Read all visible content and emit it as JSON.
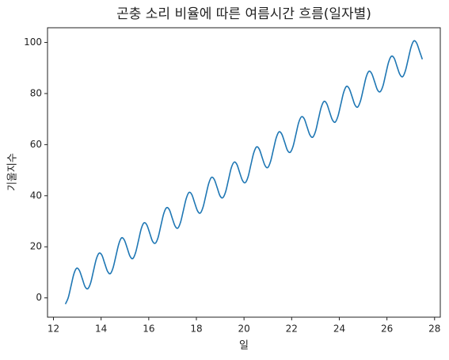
{
  "chart_data": {
    "type": "line",
    "title": "곤충 소리 비율에 따른 여름시간 흐름(일자별)",
    "xlabel": "일",
    "ylabel": "기울지수",
    "x": [
      12.5,
      12.618,
      12.736,
      12.854,
      12.972,
      13.09,
      13.208,
      13.326,
      13.444,
      13.562,
      13.68,
      13.798,
      13.916,
      14.034,
      14.152,
      14.27,
      14.388,
      14.506,
      14.624,
      14.742,
      14.86,
      14.978,
      15.096,
      15.214,
      15.332,
      15.45,
      15.568,
      15.686,
      15.804,
      15.922,
      16.04,
      16.158,
      16.276,
      16.394,
      16.512,
      16.63,
      16.748,
      16.866,
      16.984,
      17.102,
      17.22,
      17.338,
      17.456,
      17.574,
      17.692,
      17.81,
      17.928,
      18.046,
      18.164,
      18.282,
      18.4,
      18.518,
      18.636,
      18.754,
      18.872,
      18.99,
      19.108,
      19.226,
      19.344,
      19.462,
      19.58,
      19.698,
      19.816,
      19.934,
      20.052,
      20.17,
      20.288,
      20.406,
      20.524,
      20.642,
      20.76,
      20.878,
      20.996,
      21.114,
      21.232,
      21.35,
      21.468,
      21.586,
      21.704,
      21.822,
      21.94,
      22.058,
      22.176,
      22.294,
      22.412,
      22.53,
      22.648,
      22.766,
      22.884,
      23.002,
      23.12,
      23.238,
      23.356,
      23.474,
      23.592,
      23.71,
      23.828,
      23.946,
      24.064,
      24.182,
      24.3,
      24.418,
      24.536,
      24.654,
      24.772,
      24.89,
      25.008,
      25.126,
      25.244,
      25.362,
      25.48,
      25.598,
      25.716,
      25.834,
      25.952,
      26.07,
      26.188,
      26.306,
      26.424,
      26.542,
      26.66,
      26.778,
      26.896,
      27.014,
      27.132,
      27.25,
      27.368,
      27.486
    ],
    "series": [
      {
        "name": "기울지수",
        "color": "#1f77b4",
        "values": [
          -2.4,
          0.0,
          4.6,
          9.3,
          11.6,
          10.7,
          7.6,
          4.4,
          3.6,
          5.9,
          10.6,
          15.2,
          17.5,
          16.7,
          13.5,
          10.4,
          9.5,
          11.9,
          16.5,
          21.1,
          23.5,
          22.6,
          19.5,
          16.3,
          15.4,
          17.8,
          22.4,
          27.1,
          29.4,
          28.5,
          25.4,
          22.2,
          21.4,
          23.7,
          28.4,
          33.0,
          35.3,
          34.5,
          31.3,
          28.2,
          27.3,
          29.7,
          34.3,
          38.9,
          41.3,
          40.4,
          37.2,
          34.1,
          33.2,
          35.6,
          40.2,
          44.8,
          47.2,
          46.3,
          43.2,
          40.0,
          39.2,
          41.5,
          46.1,
          50.8,
          53.1,
          52.3,
          49.1,
          46.0,
          45.1,
          47.4,
          52.1,
          56.7,
          59.1,
          58.2,
          55.0,
          51.9,
          51.0,
          53.4,
          58.0,
          62.6,
          65.0,
          64.1,
          61.0,
          57.8,
          57.0,
          59.3,
          63.9,
          68.6,
          70.9,
          70.1,
          66.9,
          63.8,
          62.9,
          65.2,
          69.9,
          74.5,
          76.9,
          76.0,
          72.8,
          69.7,
          68.8,
          71.2,
          75.8,
          80.4,
          82.8,
          81.9,
          78.8,
          75.6,
          74.7,
          77.1,
          81.7,
          86.4,
          88.7,
          87.8,
          84.7,
          81.5,
          80.7,
          83.0,
          87.7,
          92.3,
          94.6,
          93.8,
          90.6,
          87.5,
          86.6,
          89.0,
          93.6,
          98.2,
          100.6,
          99.7,
          96.6,
          93.4
        ]
      }
    ],
    "xlim": [
      11.75,
      28.24
    ],
    "ylim": [
      -7.55,
      105.75
    ],
    "xticks": [
      12,
      14,
      16,
      18,
      20,
      22,
      24,
      26,
      28
    ],
    "yticks": [
      0,
      20,
      40,
      60,
      80,
      100
    ],
    "grid": false
  }
}
